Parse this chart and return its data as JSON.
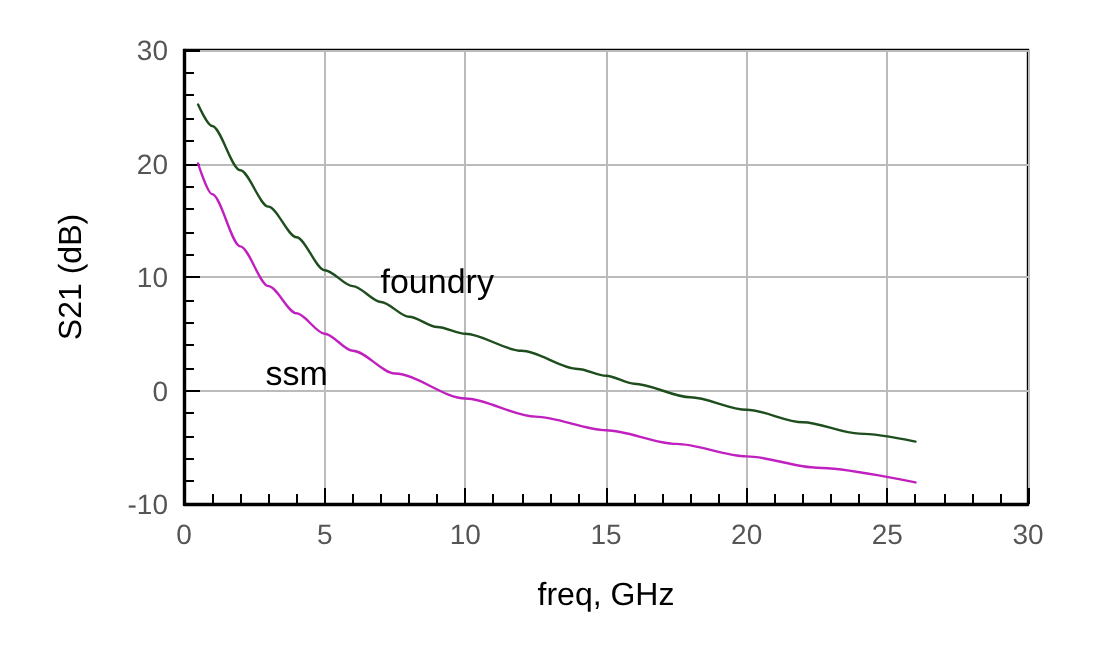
{
  "chart_data": {
    "type": "line",
    "xlabel": "freq, GHz",
    "ylabel": "S21 (dB)",
    "xlim": [
      0,
      30
    ],
    "xticks": [
      0,
      5,
      10,
      15,
      20,
      25,
      30
    ],
    "ylim": [
      -10,
      30
    ],
    "yticks": [
      -10,
      0,
      10,
      20,
      30
    ],
    "grid": true,
    "legend": false,
    "marker": "none",
    "line_style": "solid",
    "series": [
      {
        "name": "foundry",
        "color": "#1e4d1e",
        "x": [
          0.5,
          1,
          2,
          3,
          4,
          5,
          6,
          7,
          8,
          9,
          10,
          12,
          14,
          15,
          16,
          18,
          20,
          22,
          24,
          26
        ],
        "values": [
          25.2,
          23.3,
          19.4,
          16.2,
          13.5,
          10.6,
          9.2,
          7.8,
          6.5,
          5.6,
          5,
          3.5,
          1.9,
          1.3,
          0.6,
          -0.6,
          -1.7,
          -2.8,
          -3.8,
          -4.5
        ]
      },
      {
        "name": "ssm",
        "color": "#c020c0",
        "x": [
          0.5,
          1,
          2,
          3,
          4,
          5,
          6,
          7.5,
          10,
          12.5,
          15,
          17.5,
          20,
          22.5,
          26
        ],
        "values": [
          20,
          17.3,
          12.7,
          9.2,
          6.8,
          5,
          3.5,
          1.5,
          -0.7,
          -2.3,
          -3.5,
          -4.7,
          -5.8,
          -6.8,
          -8.1
        ]
      }
    ]
  }
}
